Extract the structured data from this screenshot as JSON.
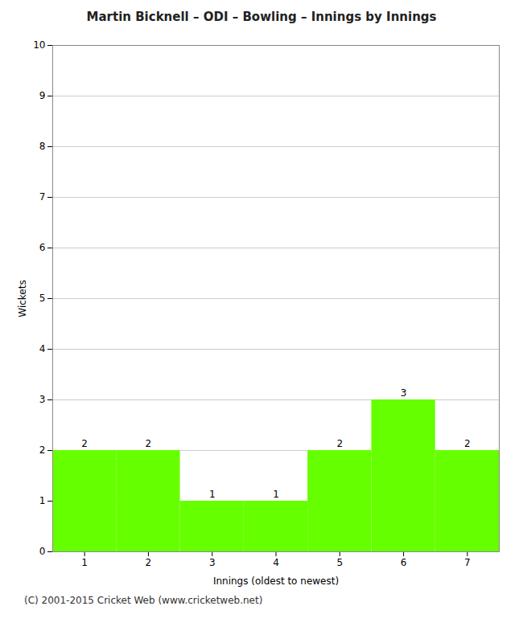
{
  "chart_data": {
    "type": "bar",
    "title": "Martin Bicknell – ODI – Bowling – Innings by Innings",
    "xlabel": "Innings (oldest to newest)",
    "ylabel": "Wickets",
    "x": [
      1,
      2,
      3,
      4,
      5,
      6,
      7
    ],
    "values": [
      2,
      2,
      1,
      1,
      2,
      3,
      2
    ],
    "color": "#66ff00",
    "xlim": [
      0.5,
      7.5
    ],
    "xticks": [
      1,
      2,
      3,
      4,
      5,
      6,
      7
    ],
    "ylim": [
      0,
      10
    ],
    "yticks": [
      0,
      1,
      2,
      3,
      4,
      5,
      6,
      7,
      8,
      9,
      10
    ],
    "grid": true,
    "data_labels": true,
    "annotations": [
      "(C) 2001-2015 Cricket Web (www.cricketweb.net)"
    ]
  }
}
